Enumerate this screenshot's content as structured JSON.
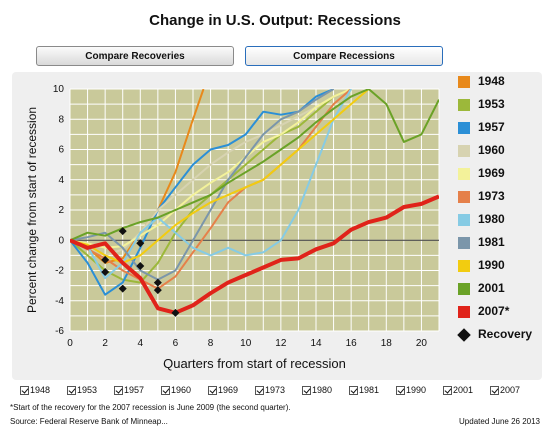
{
  "title": "Change in U.S. Output: Recessions",
  "tabs": [
    {
      "label": "Compare Recoveries",
      "active": false
    },
    {
      "label": "Compare Recessions",
      "active": true
    }
  ],
  "checkboxes": [
    "1948",
    "1953",
    "1957",
    "1960",
    "1969",
    "1973",
    "1980",
    "1981",
    "1990",
    "2001",
    "2007"
  ],
  "footnote": "*Start of the recovery for the 2007 recession is June 2009 (the second quarter).",
  "source": "Source: Federal Reserve Bank of Minneap...",
  "updated": "Updated June 26 2013",
  "colors": {
    "plot_bg": "#c9c99a",
    "grid": "#ffffff",
    "zero_line": "#333333"
  },
  "legend": [
    {
      "label": "1948",
      "color": "#e8891b",
      "marker": "square"
    },
    {
      "label": "1953",
      "color": "#9cb83a",
      "marker": "square"
    },
    {
      "label": "1957",
      "color": "#2b8fd6",
      "marker": "square"
    },
    {
      "label": "1960",
      "color": "#d7d3b1",
      "marker": "square"
    },
    {
      "label": "1969",
      "color": "#f3f29a",
      "marker": "square"
    },
    {
      "label": "1973",
      "color": "#e5804a",
      "marker": "square"
    },
    {
      "label": "1980",
      "color": "#86cbe4",
      "marker": "square"
    },
    {
      "label": "1981",
      "color": "#7b96aa",
      "marker": "square"
    },
    {
      "label": "1990",
      "color": "#f2cc10",
      "marker": "square"
    },
    {
      "label": "2001",
      "color": "#6aa227",
      "marker": "square"
    },
    {
      "label": "2007*",
      "color": "#e0231a",
      "marker": "square"
    },
    {
      "label": "Recovery",
      "color": "#111111",
      "marker": "diamond"
    }
  ],
  "chart_data": {
    "type": "line",
    "xlabel": "Quarters from start of recession",
    "ylabel": "Percent change from start of recession",
    "xlim": [
      0,
      21
    ],
    "ylim": [
      -6,
      10
    ],
    "xticks": [
      0,
      2,
      4,
      6,
      8,
      10,
      12,
      14,
      16,
      18,
      20
    ],
    "yticks": [
      -6,
      -4,
      -2,
      0,
      2,
      4,
      6,
      8,
      10
    ],
    "grid": true,
    "series": [
      {
        "name": "1948",
        "color": "#e8891b",
        "points": [
          [
            0,
            0
          ],
          [
            1,
            -0.5
          ],
          [
            2,
            -1.5
          ],
          [
            3,
            -1.2
          ],
          [
            4,
            0.5
          ],
          [
            5,
            2
          ],
          [
            6,
            4.5
          ],
          [
            7,
            8
          ],
          [
            7.6,
            10
          ]
        ]
      },
      {
        "name": "1953",
        "color": "#9cb83a",
        "points": [
          [
            0,
            0
          ],
          [
            1,
            -1
          ],
          [
            2,
            -2
          ],
          [
            3,
            -2.6
          ],
          [
            4,
            -2.8
          ],
          [
            5,
            -1.5
          ],
          [
            6,
            0.5
          ],
          [
            7,
            2
          ],
          [
            8,
            3
          ],
          [
            9,
            4
          ],
          [
            10,
            5
          ],
          [
            11,
            6
          ],
          [
            12,
            7
          ],
          [
            13,
            7.5
          ],
          [
            14,
            8.5
          ],
          [
            15,
            9.5
          ],
          [
            16,
            10
          ]
        ]
      },
      {
        "name": "1957",
        "color": "#2b8fd6",
        "points": [
          [
            0,
            0
          ],
          [
            1,
            -1.5
          ],
          [
            2,
            -3.6
          ],
          [
            3,
            -2.8
          ],
          [
            4,
            -0.5
          ],
          [
            5,
            2
          ],
          [
            6,
            3.5
          ],
          [
            7,
            5
          ],
          [
            8,
            6
          ],
          [
            9,
            6.3
          ],
          [
            10,
            7
          ],
          [
            11,
            8.5
          ],
          [
            12,
            8.3
          ],
          [
            13,
            8.5
          ],
          [
            14,
            9.5
          ],
          [
            15,
            10
          ]
        ]
      },
      {
        "name": "1960",
        "color": "#d7d3b1",
        "points": [
          [
            0,
            0
          ],
          [
            1,
            -0.4
          ],
          [
            2,
            -1
          ],
          [
            3,
            -0.6
          ],
          [
            4,
            0.5
          ],
          [
            5,
            2
          ],
          [
            6,
            3
          ],
          [
            7,
            4
          ],
          [
            8,
            5
          ],
          [
            9,
            5.8
          ],
          [
            10,
            6.5
          ],
          [
            11,
            7
          ],
          [
            12,
            7.6
          ],
          [
            13,
            8.2
          ],
          [
            14,
            8.8
          ],
          [
            15,
            9.5
          ],
          [
            16,
            10
          ]
        ]
      },
      {
        "name": "1969",
        "color": "#f3f29a",
        "points": [
          [
            0,
            0
          ],
          [
            1,
            -0.2
          ],
          [
            2,
            -0.5
          ],
          [
            3,
            -0.4
          ],
          [
            4,
            0.3
          ],
          [
            5,
            1
          ],
          [
            6,
            2
          ],
          [
            7,
            3
          ],
          [
            8,
            3.8
          ],
          [
            9,
            4.5
          ],
          [
            10,
            5.5
          ],
          [
            11,
            6.5
          ],
          [
            12,
            7
          ],
          [
            13,
            7.8
          ],
          [
            14,
            8.8
          ],
          [
            15,
            9.5
          ],
          [
            16,
            10
          ]
        ]
      },
      {
        "name": "1973",
        "color": "#e5804a",
        "points": [
          [
            0,
            0
          ],
          [
            1,
            -0.6
          ],
          [
            2,
            -1.2
          ],
          [
            3,
            -2
          ],
          [
            4,
            -2.6
          ],
          [
            5,
            -3.2
          ],
          [
            6,
            -2.4
          ],
          [
            7,
            -0.8
          ],
          [
            8,
            0.8
          ],
          [
            9,
            2.5
          ],
          [
            10,
            3.5
          ],
          [
            11,
            4
          ],
          [
            12,
            5
          ],
          [
            13,
            6
          ],
          [
            14,
            7.5
          ],
          [
            15,
            9
          ],
          [
            16,
            10
          ]
        ]
      },
      {
        "name": "1980",
        "color": "#86cbe4",
        "points": [
          [
            0,
            0
          ],
          [
            1,
            -0.4
          ],
          [
            2,
            -2.5
          ],
          [
            3,
            -1.5
          ],
          [
            4,
            0.5
          ],
          [
            5,
            1.5
          ],
          [
            6,
            0.5
          ],
          [
            7,
            -0.5
          ],
          [
            8,
            -1
          ],
          [
            9,
            -0.5
          ],
          [
            10,
            -1
          ],
          [
            11,
            -0.8
          ],
          [
            12,
            0
          ],
          [
            13,
            2
          ],
          [
            14,
            5
          ],
          [
            15,
            8
          ],
          [
            16,
            10
          ]
        ]
      },
      {
        "name": "1981",
        "color": "#7b96aa",
        "points": [
          [
            0,
            0
          ],
          [
            1,
            0.2
          ],
          [
            2,
            0.5
          ],
          [
            3,
            -0.5
          ],
          [
            4,
            -2
          ],
          [
            5,
            -2.6
          ],
          [
            6,
            -2
          ],
          [
            7,
            0
          ],
          [
            8,
            2
          ],
          [
            9,
            4
          ],
          [
            10,
            5.5
          ],
          [
            11,
            7
          ],
          [
            12,
            8
          ],
          [
            13,
            8.5
          ],
          [
            14,
            9.3
          ],
          [
            15,
            10
          ]
        ]
      },
      {
        "name": "1990",
        "color": "#f2cc10",
        "points": [
          [
            0,
            0
          ],
          [
            1,
            -0.3
          ],
          [
            2,
            -1
          ],
          [
            3,
            -1.5
          ],
          [
            4,
            -1
          ],
          [
            5,
            0
          ],
          [
            6,
            1
          ],
          [
            7,
            1.8
          ],
          [
            8,
            2.5
          ],
          [
            9,
            3
          ],
          [
            10,
            3.5
          ],
          [
            11,
            4
          ],
          [
            12,
            5
          ],
          [
            13,
            6
          ],
          [
            14,
            7
          ],
          [
            15,
            8
          ],
          [
            16,
            9
          ],
          [
            17,
            10
          ]
        ]
      },
      {
        "name": "2001",
        "color": "#6aa227",
        "points": [
          [
            0,
            0
          ],
          [
            1,
            0.5
          ],
          [
            2,
            0.3
          ],
          [
            3,
            0.8
          ],
          [
            4,
            1.2
          ],
          [
            5,
            1.5
          ],
          [
            6,
            2
          ],
          [
            7,
            2.5
          ],
          [
            8,
            3
          ],
          [
            9,
            3.8
          ],
          [
            10,
            4.5
          ],
          [
            11,
            5.2
          ],
          [
            12,
            6
          ],
          [
            13,
            6.8
          ],
          [
            14,
            7.8
          ],
          [
            15,
            8.7
          ],
          [
            16,
            9.5
          ],
          [
            17,
            10
          ],
          [
            18,
            9
          ],
          [
            19,
            6.5
          ],
          [
            20,
            7
          ],
          [
            21,
            9.3
          ]
        ]
      },
      {
        "name": "2007*",
        "color": "#e0231a",
        "points": [
          [
            0,
            0
          ],
          [
            1,
            -0.5
          ],
          [
            2,
            -0.2
          ],
          [
            3,
            -1.5
          ],
          [
            4,
            -2.5
          ],
          [
            5,
            -4.5
          ],
          [
            6,
            -4.8
          ],
          [
            7,
            -4.3
          ],
          [
            8,
            -3.5
          ],
          [
            9,
            -2.8
          ],
          [
            10,
            -2.3
          ],
          [
            11,
            -1.8
          ],
          [
            12,
            -1.3
          ],
          [
            13,
            -1.2
          ],
          [
            14,
            -0.6
          ],
          [
            15,
            -0.2
          ],
          [
            16,
            0.7
          ],
          [
            17,
            1.2
          ],
          [
            18,
            1.5
          ],
          [
            19,
            2.2
          ],
          [
            20,
            2.4
          ],
          [
            21,
            2.9
          ]
        ]
      }
    ],
    "recovery_points": [
      [
        2,
        -1.3
      ],
      [
        2,
        -2.1
      ],
      [
        3,
        0.6
      ],
      [
        3,
        -3.2
      ],
      [
        4,
        -0.2
      ],
      [
        4,
        -1.7
      ],
      [
        5,
        -2.8
      ],
      [
        5,
        -3.3
      ],
      [
        6,
        -4.8
      ]
    ]
  }
}
